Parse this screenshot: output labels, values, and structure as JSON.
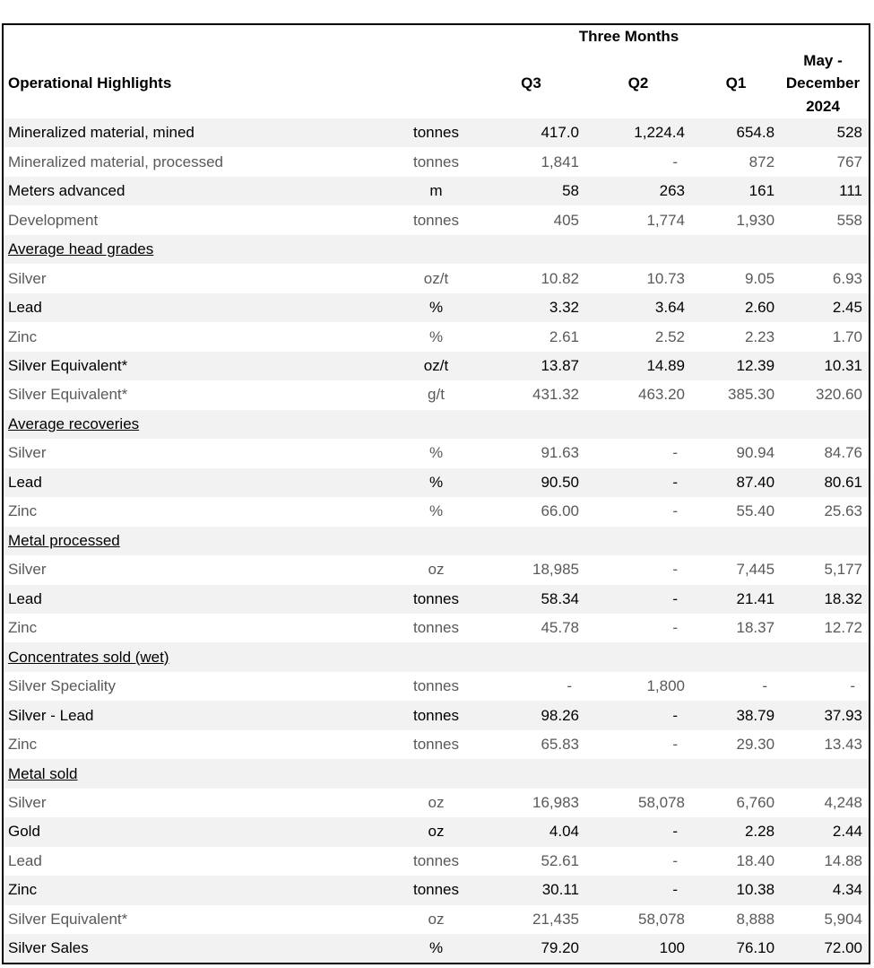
{
  "table": {
    "group_label": "Three Months",
    "title": "Operational Highlights",
    "quarter_columns": [
      "Q3",
      "Q2",
      "Q1"
    ],
    "period_label": "May -\nDecember\n2024",
    "rows": [
      {
        "type": "data",
        "label": "Mineralized material, mined",
        "unit": "tonnes",
        "values": [
          "417.0",
          "1,224.4",
          "654.8",
          "528"
        ],
        "shaded": true
      },
      {
        "type": "data",
        "label": "Mineralized material, processed",
        "unit": "tonnes",
        "values": [
          "1,841",
          "-",
          "872",
          "767"
        ],
        "shaded": false
      },
      {
        "type": "data",
        "label": "Meters advanced",
        "unit": "m",
        "values": [
          "58",
          "263",
          "161",
          "111"
        ],
        "shaded": true
      },
      {
        "type": "data",
        "label": "Development",
        "unit": "tonnes",
        "values": [
          "405",
          "1,774",
          "1,930",
          "558"
        ],
        "shaded": false
      },
      {
        "type": "section",
        "label": "Average head grades",
        "shaded": true
      },
      {
        "type": "data",
        "label": "Silver",
        "unit": "oz/t",
        "values": [
          "10.82",
          "10.73",
          "9.05",
          "6.93"
        ],
        "shaded": false
      },
      {
        "type": "data",
        "label": "Lead",
        "unit": "%",
        "values": [
          "3.32",
          "3.64",
          "2.60",
          "2.45"
        ],
        "shaded": true
      },
      {
        "type": "data",
        "label": "Zinc",
        "unit": "%",
        "values": [
          "2.61",
          "2.52",
          "2.23",
          "1.70"
        ],
        "shaded": false
      },
      {
        "type": "data",
        "label": "Silver Equivalent*",
        "unit": "oz/t",
        "values": [
          "13.87",
          "14.89",
          "12.39",
          "10.31"
        ],
        "shaded": true
      },
      {
        "type": "data",
        "label": "Silver Equivalent*",
        "unit": "g/t",
        "values": [
          "431.32",
          "463.20",
          "385.30",
          "320.60"
        ],
        "shaded": false
      },
      {
        "type": "section",
        "label": "Average recoveries",
        "shaded": true
      },
      {
        "type": "data",
        "label": "Silver",
        "unit": "%",
        "values": [
          "91.63",
          "-",
          "90.94",
          "84.76"
        ],
        "shaded": false
      },
      {
        "type": "data",
        "label": "Lead",
        "unit": "%",
        "values": [
          "90.50",
          "-",
          "87.40",
          "80.61"
        ],
        "shaded": true
      },
      {
        "type": "data",
        "label": "Zinc",
        "unit": "%",
        "values": [
          "66.00",
          "-",
          "55.40",
          "25.63"
        ],
        "shaded": false
      },
      {
        "type": "section",
        "label": "Metal processed",
        "shaded": true
      },
      {
        "type": "data",
        "label": "Silver",
        "unit": "oz",
        "values": [
          "18,985",
          "-",
          "7,445",
          "5,177"
        ],
        "shaded": false
      },
      {
        "type": "data",
        "label": "Lead",
        "unit": "tonnes",
        "values": [
          "58.34",
          "-",
          "21.41",
          "18.32"
        ],
        "shaded": true
      },
      {
        "type": "data",
        "label": "Zinc",
        "unit": "tonnes",
        "values": [
          "45.78",
          "-",
          "18.37",
          "12.72"
        ],
        "shaded": false
      },
      {
        "type": "section",
        "label": "Concentrates sold (wet)",
        "shaded": true
      },
      {
        "type": "data",
        "label": "Silver Speciality",
        "unit": "tonnes",
        "values": [
          "-",
          "1,800",
          "-",
          "-"
        ],
        "shaded": false
      },
      {
        "type": "data",
        "label": "Silver - Lead",
        "unit": "tonnes",
        "values": [
          "98.26",
          "-",
          "38.79",
          "37.93"
        ],
        "shaded": true
      },
      {
        "type": "data",
        "label": "Zinc",
        "unit": "tonnes",
        "values": [
          "65.83",
          "-",
          "29.30",
          "13.43"
        ],
        "shaded": false
      },
      {
        "type": "section",
        "label": "Metal sold",
        "shaded": true
      },
      {
        "type": "data",
        "label": "Silver",
        "unit": "oz",
        "values": [
          "16,983",
          "58,078",
          "6,760",
          "4,248"
        ],
        "shaded": false
      },
      {
        "type": "data",
        "label": "Gold",
        "unit": "oz",
        "values": [
          "4.04",
          "-",
          "2.28",
          "2.44"
        ],
        "shaded": true
      },
      {
        "type": "data",
        "label": "Lead",
        "unit": "tonnes",
        "values": [
          "52.61",
          "-",
          "18.40",
          "14.88"
        ],
        "shaded": false
      },
      {
        "type": "data",
        "label": "Zinc",
        "unit": "tonnes",
        "values": [
          "30.11",
          "-",
          "10.38",
          "4.34"
        ],
        "shaded": true
      },
      {
        "type": "data",
        "label": "Silver Equivalent*",
        "unit": "oz",
        "values": [
          "21,435",
          "58,078",
          "8,888",
          "5,904"
        ],
        "shaded": false
      },
      {
        "type": "data",
        "label": "Silver Sales",
        "unit": "%",
        "values": [
          "79.20",
          "100",
          "76.10",
          "72.00"
        ],
        "shaded": true
      }
    ]
  },
  "colors": {
    "band_background": "#f2f2f2",
    "muted_text": "#595959",
    "text": "#000000",
    "border": "#000000"
  }
}
